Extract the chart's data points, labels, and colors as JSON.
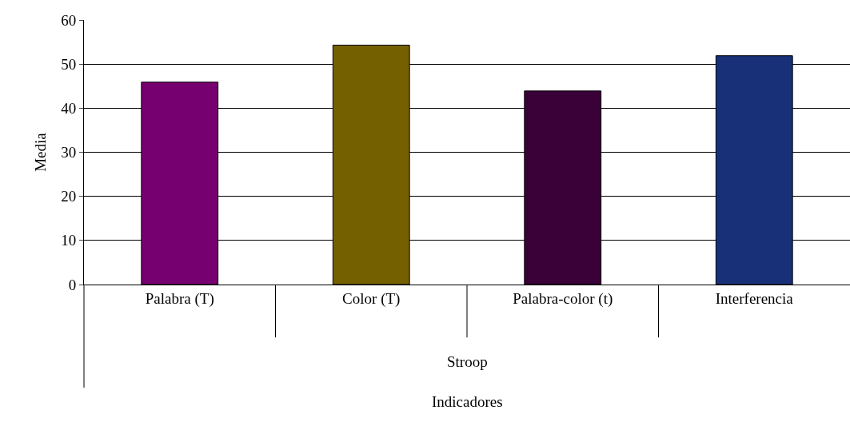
{
  "chart_data": {
    "type": "bar",
    "categories": [
      "Palabra (T)",
      "Color (T)",
      "Palabra-color (t)",
      "Interferencia"
    ],
    "values": [
      45.9,
      54.3,
      43.9,
      51.9
    ],
    "colors": [
      "#770070",
      "#756000",
      "#3a0038",
      "#183078"
    ],
    "ylabel": "Media",
    "annotations": [
      "Stroop",
      "Indicadores"
    ],
    "ylim": [
      0,
      60
    ],
    "yticks": [
      0,
      10,
      20,
      30,
      40,
      50,
      60
    ],
    "grid": "y"
  }
}
